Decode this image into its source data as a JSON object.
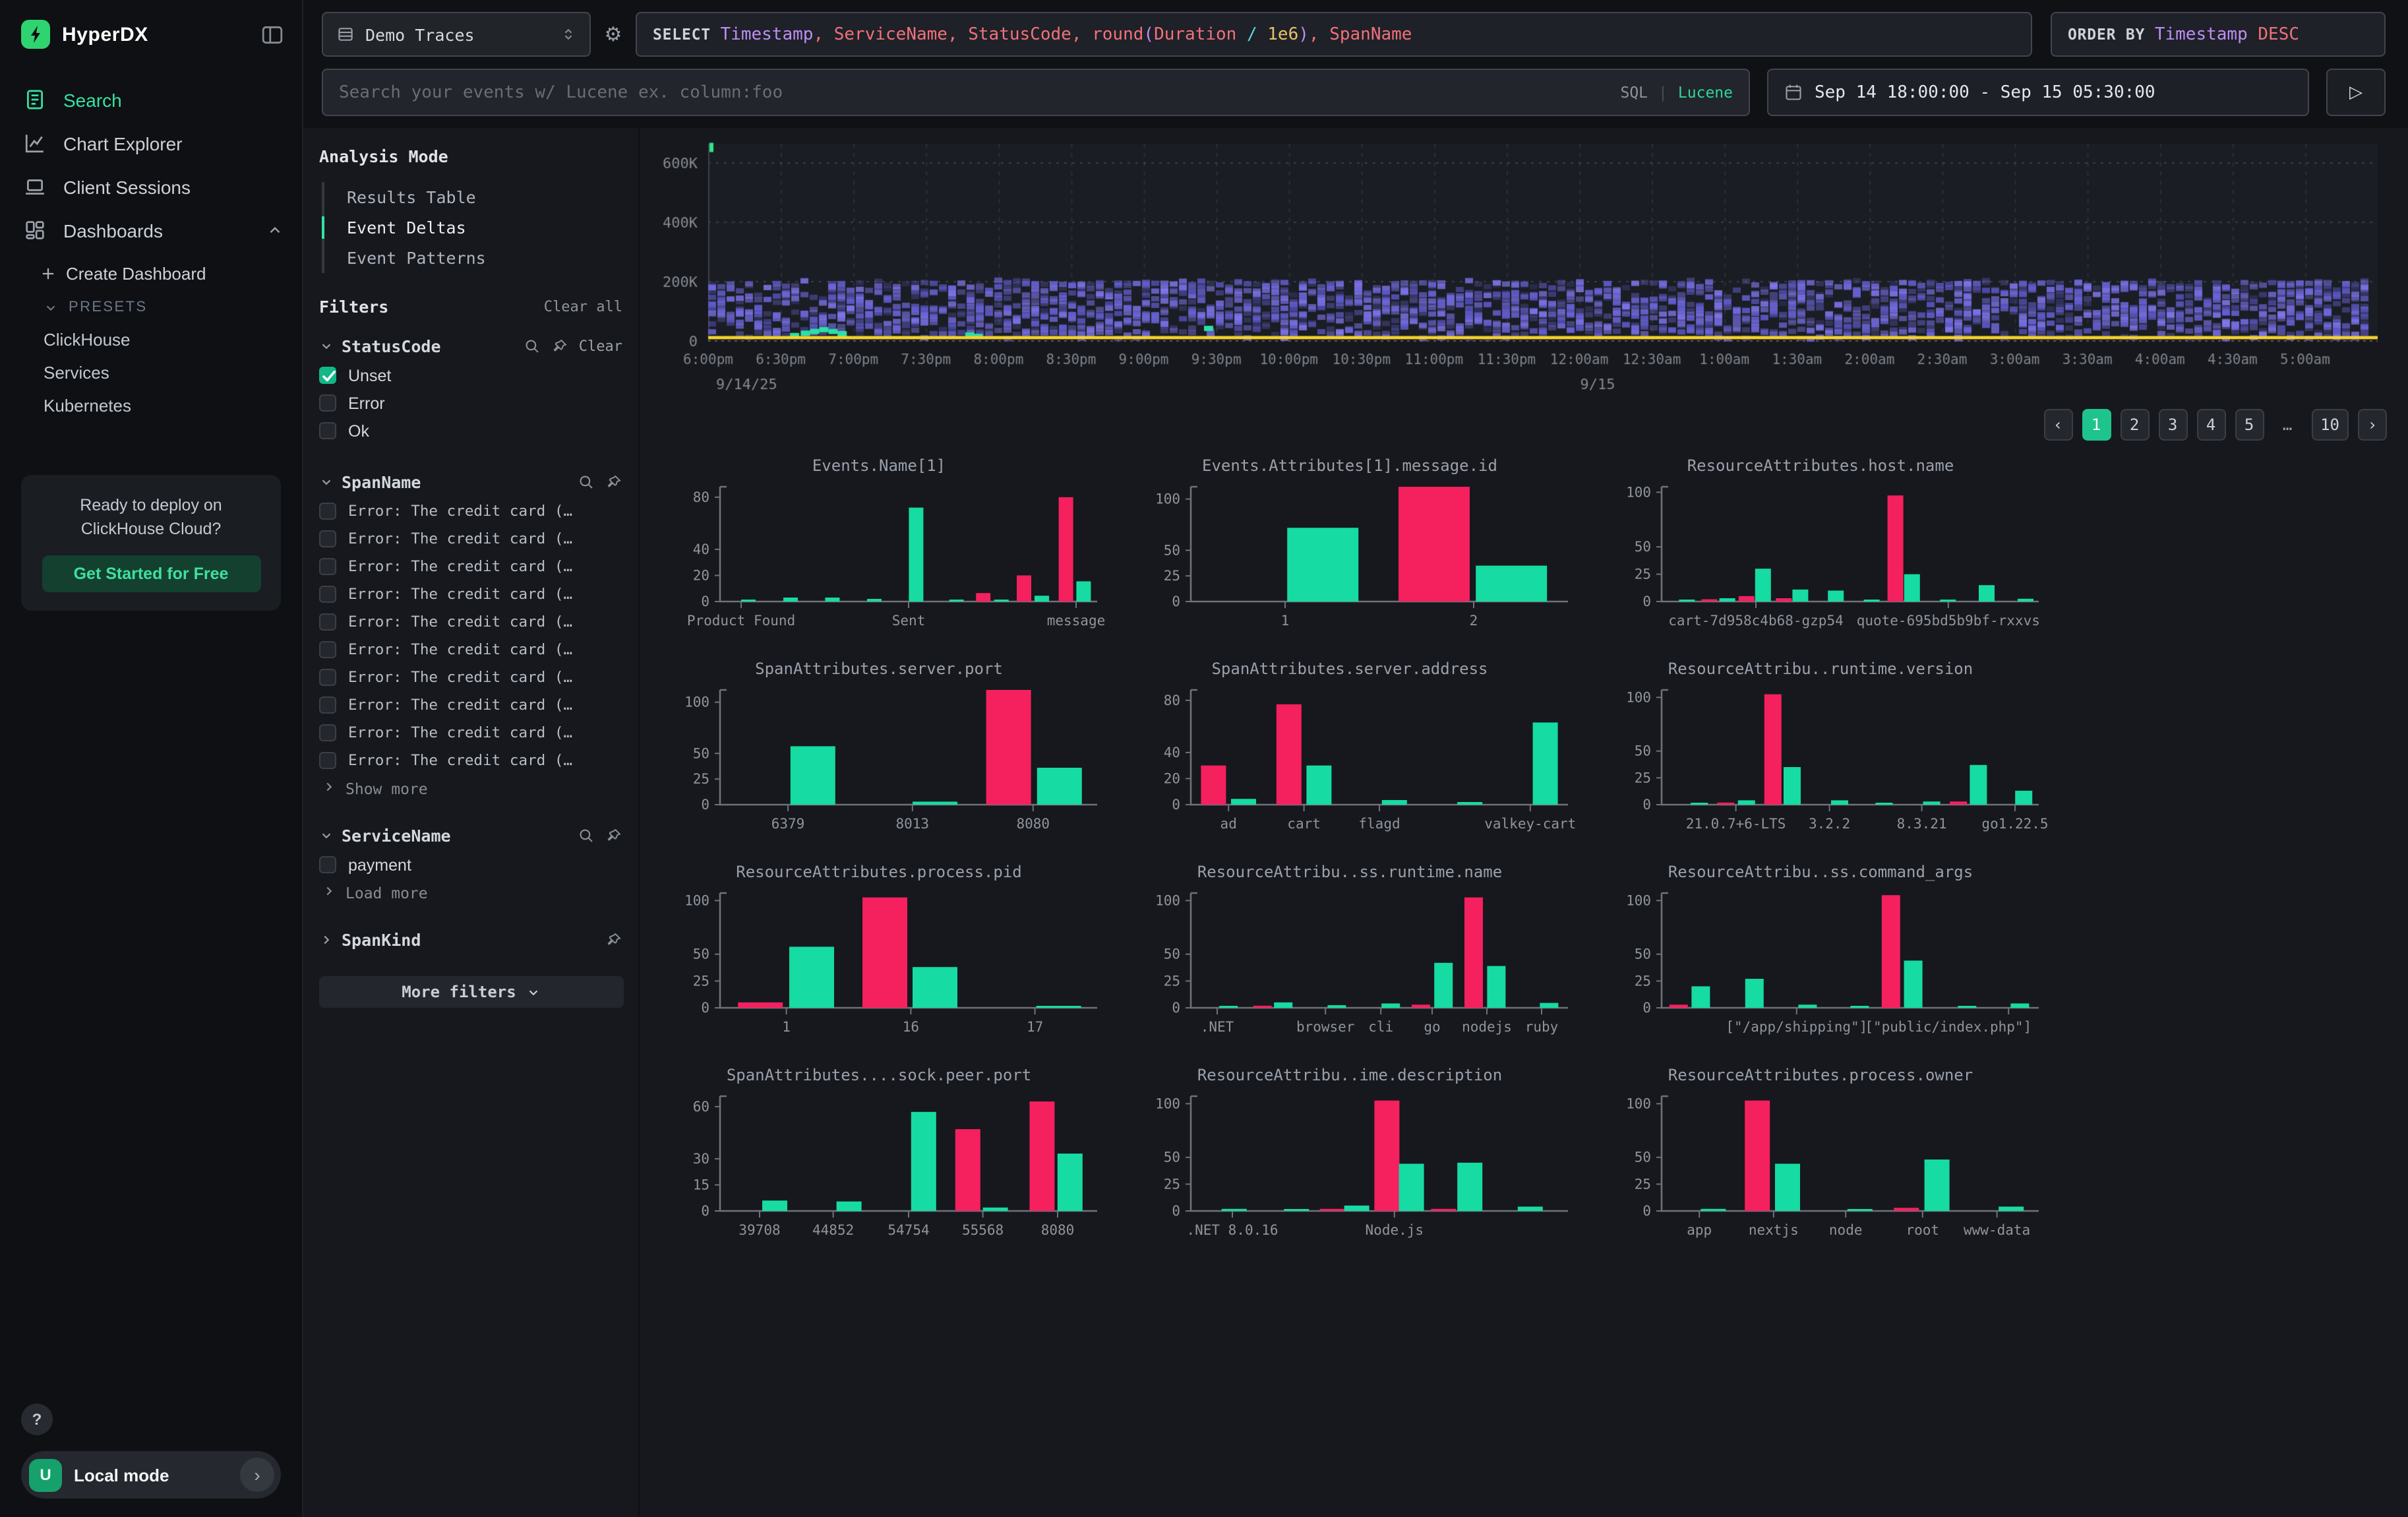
{
  "colors": {
    "accent_green": "#1ec48c",
    "bar_green": "#16DBA2",
    "bar_pink": "#F5205E",
    "heat_purple": "#6c6ade",
    "heat_yellow": "#f6d32d",
    "heat_teal": "#2bdfa6",
    "logo_green": "#2fd36f",
    "link_green": "#2fd79a",
    "checkbox_green": "#12b886"
  },
  "sidebar": {
    "logo_text": "HyperDX",
    "nav": [
      {
        "label": "Search",
        "icon": "search-doc",
        "active": true
      },
      {
        "label": "Chart Explorer",
        "icon": "chart",
        "active": false
      },
      {
        "label": "Client Sessions",
        "icon": "laptop",
        "active": false
      },
      {
        "label": "Dashboards",
        "icon": "dashboard",
        "active": false,
        "expanded": true
      }
    ],
    "sub": {
      "create_label": "Create Dashboard",
      "presets_label": "PRESETS",
      "items": [
        "ClickHouse",
        "Services",
        "Kubernetes"
      ]
    },
    "promo": {
      "line1": "Ready to deploy on",
      "line2": "ClickHouse Cloud?",
      "cta": "Get Started for Free"
    },
    "help_label": "?",
    "user": {
      "initial": "U",
      "label": "Local mode"
    }
  },
  "topbar": {
    "source_label": "Demo Traces",
    "settings_glyph": "⚙",
    "sql_tokens": [
      {
        "text": "SELECT ",
        "cls": "kw"
      },
      {
        "text": "Timestamp",
        "cls": "type"
      },
      {
        "text": ", ",
        "cls": "id"
      },
      {
        "text": "ServiceName",
        "cls": "id"
      },
      {
        "text": ", ",
        "cls": "id"
      },
      {
        "text": "StatusCode",
        "cls": "id"
      },
      {
        "text": ", ",
        "cls": "id"
      },
      {
        "text": "round",
        "cls": "id"
      },
      {
        "text": "(",
        "cls": "paren"
      },
      {
        "text": "Duration",
        "cls": "id"
      },
      {
        "text": " / ",
        "cls": "op"
      },
      {
        "text": "1e6",
        "cls": "num"
      },
      {
        "text": ")",
        "cls": "paren"
      },
      {
        "text": ", ",
        "cls": "id"
      },
      {
        "text": "SpanName",
        "cls": "id"
      }
    ],
    "orderby_tokens": [
      {
        "text": "ORDER BY ",
        "cls": "kw"
      },
      {
        "text": "Timestamp ",
        "cls": "type"
      },
      {
        "text": "DESC",
        "cls": "id"
      }
    ],
    "search_placeholder": "Search your events w/ Lucene ex. column:foo",
    "lang_sql": "SQL",
    "lang_sep": "|",
    "lang_lucene": "Lucene",
    "time_range": "Sep 14 18:00:00 - Sep 15 05:30:00",
    "run_glyph": "▷"
  },
  "filters": {
    "analysis_mode": {
      "title": "Analysis Mode",
      "tabs": [
        "Results Table",
        "Event Deltas",
        "Event Patterns"
      ],
      "active": "Event Deltas"
    },
    "title": "Filters",
    "clear_all": "Clear all",
    "groups": [
      {
        "name": "StatusCode",
        "collapsed": false,
        "has_search": true,
        "has_pin": true,
        "clear_label": "Clear",
        "mono": false,
        "options": [
          {
            "label": "Unset",
            "checked": true
          },
          {
            "label": "Error",
            "checked": false
          },
          {
            "label": "Ok",
            "checked": false
          }
        ],
        "more": null
      },
      {
        "name": "SpanName",
        "collapsed": false,
        "has_search": true,
        "has_pin": true,
        "clear_label": null,
        "mono": true,
        "options": [
          {
            "label": "Error: The credit card (…",
            "checked": false
          },
          {
            "label": "Error: The credit card (…",
            "checked": false
          },
          {
            "label": "Error: The credit card (…",
            "checked": false
          },
          {
            "label": "Error: The credit card (…",
            "checked": false
          },
          {
            "label": "Error: The credit card (…",
            "checked": false
          },
          {
            "label": "Error: The credit card (…",
            "checked": false
          },
          {
            "label": "Error: The credit card (…",
            "checked": false
          },
          {
            "label": "Error: The credit card (…",
            "checked": false
          },
          {
            "label": "Error: The credit card (…",
            "checked": false
          },
          {
            "label": "Error: The credit card (…",
            "checked": false
          }
        ],
        "more": "Show more"
      },
      {
        "name": "ServiceName",
        "collapsed": false,
        "has_search": true,
        "has_pin": true,
        "clear_label": null,
        "mono": false,
        "options": [
          {
            "label": "payment",
            "checked": false
          }
        ],
        "more": "Load more"
      },
      {
        "name": "SpanKind",
        "collapsed": true,
        "has_search": false,
        "has_pin": true,
        "clear_label": null,
        "mono": false,
        "options": [],
        "more": null
      }
    ],
    "more_filters": "More filters"
  },
  "pagination": {
    "prev": "‹",
    "next": "›",
    "pages": [
      "1",
      "2",
      "3",
      "4",
      "5",
      "…",
      "10"
    ],
    "active": "1"
  },
  "chart_data": [
    {
      "type": "heatmap",
      "title": "Event Deltas heatmap",
      "yticks": [
        {
          "label": "0",
          "v": 0
        },
        {
          "label": "200K",
          "v": 200000
        },
        {
          "label": "400K",
          "v": 400000
        },
        {
          "label": "600K",
          "v": 600000
        }
      ],
      "ymax": 660000,
      "xticks": [
        "6:00pm",
        "6:30pm",
        "7:00pm",
        "7:30pm",
        "8:00pm",
        "8:30pm",
        "9:00pm",
        "9:30pm",
        "10:00pm",
        "10:30pm",
        "11:00pm",
        "11:30pm",
        "12:00am",
        "12:30am",
        "1:00am",
        "1:30am",
        "2:00am",
        "2:30am",
        "3:00am",
        "3:30am",
        "4:00am",
        "4:30am",
        "5:00am"
      ],
      "date_labels": [
        {
          "label": "9/14/25",
          "x": 0.012
        },
        {
          "label": "9/15",
          "x": 0.5217
        }
      ],
      "density_band": [
        20000,
        195000
      ],
      "baseline_value": 10000,
      "teal_cells": [
        [
          0.049,
          16000
        ],
        [
          0.0555,
          24000
        ],
        [
          0.061,
          30000
        ],
        [
          0.0665,
          36000
        ],
        [
          0.072,
          30000
        ],
        [
          0.0775,
          22000
        ],
        [
          0.154,
          18000
        ],
        [
          0.159,
          13000
        ],
        [
          0.297,
          40000
        ]
      ],
      "green_marker": {
        "x": 0.0,
        "v": 650000
      }
    },
    {
      "type": "bar",
      "title": "Events.Name[1]",
      "ymax": 88,
      "yticks": [
        0,
        20,
        40,
        80
      ],
      "bw": 11,
      "bars": [
        [
          0.075,
          1,
          "g"
        ],
        [
          0.187,
          3,
          "g"
        ],
        [
          0.298,
          3,
          "g"
        ],
        [
          0.409,
          2,
          "g"
        ],
        [
          0.52,
          72,
          "g"
        ],
        [
          0.627,
          1.5,
          "g"
        ],
        [
          0.698,
          6.5,
          "p"
        ],
        [
          0.746,
          0.5,
          "g"
        ],
        [
          0.806,
          20,
          "p"
        ],
        [
          0.853,
          4.5,
          "g"
        ],
        [
          0.917,
          80,
          "p"
        ],
        [
          0.964,
          15.5,
          "g"
        ]
      ],
      "xticks": [
        {
          "x": 0.056,
          "label": "Product Found"
        },
        {
          "x": 0.5,
          "label": "Sent"
        },
        {
          "x": 0.944,
          "label": "message"
        }
      ]
    },
    {
      "type": "bar",
      "title": "Events.Attributes[1].message.id",
      "ymax": 112,
      "yticks": [
        0,
        25,
        50,
        100
      ],
      "bw": 54,
      "bars": [
        [
          0.35,
          72,
          "g"
        ],
        [
          0.645,
          112,
          "p"
        ],
        [
          0.85,
          35,
          "g"
        ]
      ],
      "xticks": [
        {
          "x": 0.25,
          "label": "1"
        },
        {
          "x": 0.75,
          "label": "2"
        }
      ]
    },
    {
      "type": "bar",
      "title": "ResourceAttributes.host.name",
      "ymax": 105,
      "yticks": [
        0,
        25,
        50,
        100
      ],
      "bw": 12,
      "bars": [
        [
          0.067,
          1,
          "g"
        ],
        [
          0.127,
          2,
          "p"
        ],
        [
          0.174,
          3,
          "g"
        ],
        [
          0.225,
          5,
          "p"
        ],
        [
          0.269,
          30,
          "g"
        ],
        [
          0.324,
          3,
          "p"
        ],
        [
          0.368,
          11,
          "g"
        ],
        [
          0.462,
          10,
          "g"
        ],
        [
          0.557,
          0.5,
          "g"
        ],
        [
          0.62,
          97,
          "p"
        ],
        [
          0.664,
          25,
          "g"
        ],
        [
          0.759,
          0.5,
          "g"
        ],
        [
          0.862,
          15,
          "g"
        ],
        [
          0.965,
          2.5,
          "g"
        ]
      ],
      "xticks": [
        {
          "x": 0.25,
          "label": "cart-7d958c4b68-gzp54"
        },
        {
          "x": 0.76,
          "label": "quote-695bd5b9bf-rxxvs"
        }
      ]
    },
    {
      "type": "bar",
      "title": "SpanAttributes.server.port",
      "ymax": 112,
      "yticks": [
        0,
        25,
        50,
        100
      ],
      "bw": 34,
      "bars": [
        [
          0.246,
          57,
          "g"
        ],
        [
          0.57,
          3,
          "g"
        ],
        [
          0.765,
          112,
          "p"
        ],
        [
          0.9,
          36,
          "g"
        ]
      ],
      "xticks": [
        {
          "x": 0.18,
          "label": "6379"
        },
        {
          "x": 0.51,
          "label": "8013"
        },
        {
          "x": 0.83,
          "label": "8080"
        }
      ]
    },
    {
      "type": "bar",
      "title": "SpanAttributes.server.address",
      "ymax": 88,
      "yticks": [
        0,
        20,
        40,
        80
      ],
      "bw": 19,
      "bars": [
        [
          0.06,
          30,
          "p"
        ],
        [
          0.14,
          4.5,
          "g"
        ],
        [
          0.26,
          77,
          "p"
        ],
        [
          0.34,
          30,
          "g"
        ],
        [
          0.54,
          3.5,
          "g"
        ],
        [
          0.74,
          2,
          "g"
        ],
        [
          0.94,
          63,
          "g"
        ]
      ],
      "xticks": [
        {
          "x": 0.1,
          "label": "ad"
        },
        {
          "x": 0.3,
          "label": "cart"
        },
        {
          "x": 0.5,
          "label": "flagd"
        },
        {
          "x": 0.9,
          "label": "valkey-cart"
        }
      ]
    },
    {
      "type": "bar",
      "title": "ResourceAttribu..runtime.version",
      "ymax": 107,
      "yticks": [
        0,
        25,
        50,
        100
      ],
      "bw": 13,
      "bars": [
        [
          0.1,
          0.5,
          "g"
        ],
        [
          0.17,
          2,
          "p"
        ],
        [
          0.225,
          4,
          "g"
        ],
        [
          0.295,
          103,
          "p"
        ],
        [
          0.346,
          35,
          "g"
        ],
        [
          0.472,
          4,
          "g"
        ],
        [
          0.59,
          1.5,
          "g"
        ],
        [
          0.716,
          3,
          "g"
        ],
        [
          0.787,
          3,
          "p"
        ],
        [
          0.84,
          37,
          "g"
        ],
        [
          0.96,
          13,
          "g"
        ]
      ],
      "xticks": [
        {
          "x": 0.197,
          "label": "21.0.7+6-LTS"
        },
        {
          "x": 0.445,
          "label": "3.2.2"
        },
        {
          "x": 0.69,
          "label": "8.3.21"
        },
        {
          "x": 0.937,
          "label": "go1.22.5"
        }
      ]
    },
    {
      "type": "bar",
      "title": "ResourceAttributes.process.pid",
      "ymax": 107,
      "yticks": [
        0,
        25,
        50,
        100
      ],
      "bw": 34,
      "bars": [
        [
          0.107,
          5,
          "p"
        ],
        [
          0.243,
          57,
          "g"
        ],
        [
          0.437,
          103,
          "p"
        ],
        [
          0.57,
          38,
          "g"
        ],
        [
          0.898,
          1,
          "g"
        ]
      ],
      "xticks": [
        {
          "x": 0.176,
          "label": "1"
        },
        {
          "x": 0.506,
          "label": "16"
        },
        {
          "x": 0.835,
          "label": "17"
        }
      ]
    },
    {
      "type": "bar",
      "title": "ResourceAttribu..ss.runtime.name",
      "ymax": 107,
      "yticks": [
        0,
        25,
        50,
        100
      ],
      "bw": 14,
      "bars": [
        [
          0.1,
          1.5,
          "g"
        ],
        [
          0.19,
          2,
          "p"
        ],
        [
          0.245,
          5,
          "g"
        ],
        [
          0.387,
          2.5,
          "g"
        ],
        [
          0.53,
          4,
          "g"
        ],
        [
          0.61,
          3,
          "p"
        ],
        [
          0.67,
          42,
          "g"
        ],
        [
          0.75,
          103,
          "p"
        ],
        [
          0.81,
          39,
          "g"
        ],
        [
          0.95,
          4.5,
          "g"
        ]
      ],
      "xticks": [
        {
          "x": 0.07,
          "label": ".NET"
        },
        {
          "x": 0.357,
          "label": "browser"
        },
        {
          "x": 0.504,
          "label": "cli"
        },
        {
          "x": 0.64,
          "label": "go"
        },
        {
          "x": 0.785,
          "label": "nodejs"
        },
        {
          "x": 0.93,
          "label": "ruby"
        }
      ]
    },
    {
      "type": "bar",
      "title": "ResourceAttribu..ss.command_args",
      "ymax": 107,
      "yticks": [
        0,
        25,
        50,
        100
      ],
      "bw": 14,
      "bars": [
        [
          0.045,
          3,
          "p"
        ],
        [
          0.104,
          20,
          "g"
        ],
        [
          0.246,
          27,
          "g"
        ],
        [
          0.387,
          3,
          "g"
        ],
        [
          0.525,
          0.5,
          "g"
        ],
        [
          0.608,
          105,
          "p"
        ],
        [
          0.667,
          44,
          "g"
        ],
        [
          0.81,
          0.5,
          "g"
        ],
        [
          0.95,
          4,
          "g"
        ]
      ],
      "xticks": [
        {
          "x": 0.358,
          "label": "[\"/app/shipping\"]"
        },
        {
          "x": 0.92,
          "lx": 0.76,
          "label": "[\"public/index.php\"]"
        }
      ]
    },
    {
      "type": "bar",
      "title": "SpanAttributes....sock.peer.port",
      "ymax": 66,
      "yticks": [
        0,
        15,
        30,
        60
      ],
      "bw": 19,
      "bars": [
        [
          0.145,
          6,
          "g"
        ],
        [
          0.342,
          5.5,
          "g"
        ],
        [
          0.54,
          57,
          "g"
        ],
        [
          0.657,
          47,
          "p"
        ],
        [
          0.73,
          2,
          "g"
        ],
        [
          0.854,
          63,
          "p"
        ],
        [
          0.928,
          33,
          "g"
        ]
      ],
      "xticks": [
        {
          "x": 0.105,
          "label": "39708"
        },
        {
          "x": 0.3,
          "label": "44852"
        },
        {
          "x": 0.5,
          "label": "54754"
        },
        {
          "x": 0.697,
          "label": "55568"
        },
        {
          "x": 0.895,
          "label": "8080"
        }
      ]
    },
    {
      "type": "bar",
      "title": "ResourceAttribu..ime.description",
      "ymax": 107,
      "yticks": [
        0,
        25,
        50,
        100
      ],
      "bw": 19,
      "bars": [
        [
          0.115,
          2,
          "g"
        ],
        [
          0.28,
          0.5,
          "g"
        ],
        [
          0.375,
          2,
          "p"
        ],
        [
          0.44,
          5,
          "g"
        ],
        [
          0.52,
          103,
          "p"
        ],
        [
          0.585,
          44,
          "g"
        ],
        [
          0.67,
          2,
          "p"
        ],
        [
          0.74,
          45,
          "g"
        ],
        [
          0.9,
          4,
          "g"
        ]
      ],
      "xticks": [
        {
          "x": 0.11,
          "label": ".NET 8.0.16"
        },
        {
          "x": 0.54,
          "label": "Node.js"
        }
      ]
    },
    {
      "type": "bar",
      "title": "ResourceAttributes.process.owner",
      "ymax": 107,
      "yticks": [
        0,
        25,
        50,
        100
      ],
      "bw": 19,
      "bars": [
        [
          0.137,
          2,
          "g"
        ],
        [
          0.254,
          103,
          "p"
        ],
        [
          0.334,
          44,
          "g"
        ],
        [
          0.526,
          0.5,
          "g"
        ],
        [
          0.649,
          3,
          "p"
        ],
        [
          0.73,
          48,
          "g"
        ],
        [
          0.927,
          4,
          "g"
        ]
      ],
      "xticks": [
        {
          "x": 0.1,
          "label": "app"
        },
        {
          "x": 0.297,
          "label": "nextjs"
        },
        {
          "x": 0.488,
          "label": "node"
        },
        {
          "x": 0.692,
          "label": "root"
        },
        {
          "x": 0.889,
          "label": "www-data"
        }
      ]
    }
  ]
}
